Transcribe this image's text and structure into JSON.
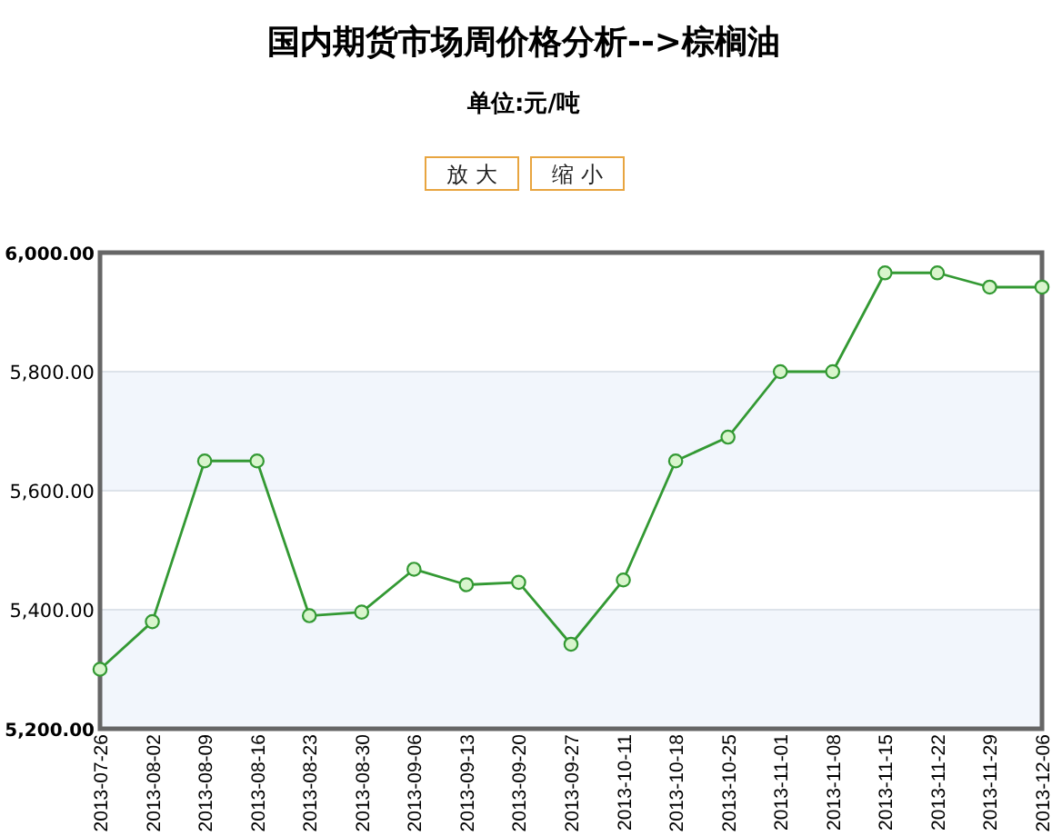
{
  "chart_data": {
    "type": "line",
    "title": "国内期货市场周价格分析-->棕榈油",
    "subtitle": "单位:元/吨",
    "annotations": [
      "放 大",
      "缩 小"
    ],
    "categories": [
      "2013-07-26",
      "2013-08-02",
      "2013-08-09",
      "2013-08-16",
      "2013-08-23",
      "2013-08-30",
      "2013-09-06",
      "2013-09-13",
      "2013-09-20",
      "2013-09-27",
      "2013-10-11",
      "2013-10-18",
      "2013-10-25",
      "2013-11-01",
      "2013-11-08",
      "2013-11-15",
      "2013-11-22",
      "2013-11-29",
      "2013-12-06"
    ],
    "series": [
      {
        "color": "#339933",
        "values": [
          5300,
          5380,
          5650,
          5650,
          5390,
          5396,
          5468,
          5442,
          5446,
          5342,
          5450,
          5650,
          5690,
          5800,
          5800,
          5966,
          5966,
          5942,
          5942
        ]
      }
    ],
    "ylim": [
      5200,
      6000
    ],
    "yticks": [
      {
        "value": 5200,
        "label": "5,200.00"
      },
      {
        "value": 5400,
        "label": "5,400.00"
      },
      {
        "value": 5600,
        "label": "5,600.00"
      },
      {
        "value": 5800,
        "label": "5,800.00"
      },
      {
        "value": 6000,
        "label": "6,000.00"
      }
    ],
    "bands": [
      {
        "axis": "y",
        "from": 5200,
        "to": 5400,
        "color": "#f2f6fc"
      },
      {
        "axis": "y",
        "from": 5600,
        "to": 5800,
        "color": "#f2f6fc"
      }
    ],
    "grid": "y",
    "marker": "circle",
    "line_style": "solid"
  }
}
